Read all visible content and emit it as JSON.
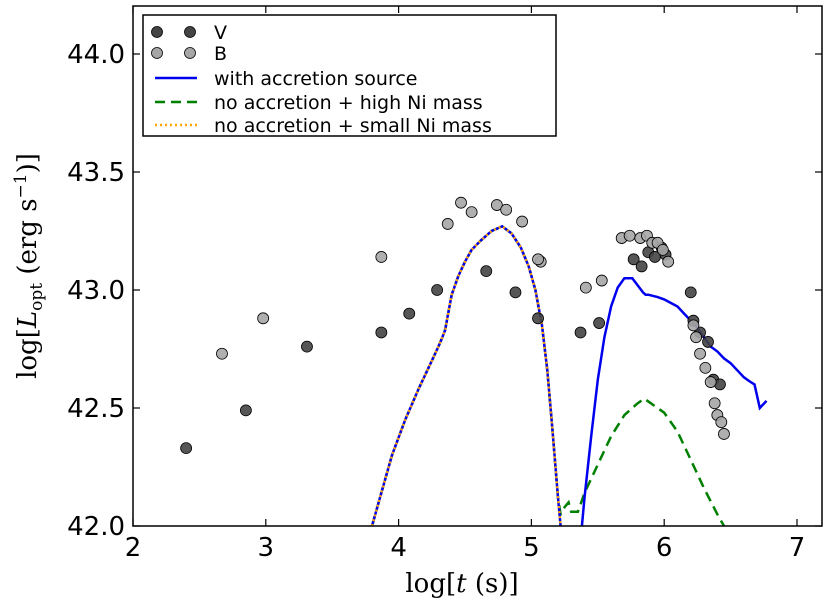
{
  "chart_data": {
    "type": "scatter",
    "xlabel": "log[t (s)]",
    "ylabel": "log[L_opt (erg s^-1)]",
    "xlim": [
      2,
      7.2
    ],
    "ylim": [
      42.0,
      44.2
    ],
    "xticks": [
      "2",
      "3",
      "4",
      "5",
      "6",
      "7"
    ],
    "yticks": [
      "42.0",
      "42.5",
      "43.0",
      "43.5",
      "44.0"
    ],
    "legend_position": "top-left",
    "series": [
      {
        "name": "V",
        "kind": "scatter",
        "color": "#444444",
        "points": [
          [
            2.4,
            42.33
          ],
          [
            2.85,
            42.49
          ],
          [
            3.31,
            42.76
          ],
          [
            3.87,
            42.82
          ],
          [
            4.08,
            42.9
          ],
          [
            4.29,
            43.0
          ],
          [
            4.66,
            43.08
          ],
          [
            4.88,
            42.99
          ],
          [
            5.05,
            42.88
          ],
          [
            5.37,
            42.82
          ],
          [
            5.51,
            42.86
          ],
          [
            5.77,
            43.13
          ],
          [
            5.83,
            43.1
          ],
          [
            5.88,
            43.16
          ],
          [
            5.93,
            43.14
          ],
          [
            5.98,
            43.18
          ],
          [
            6.01,
            43.15
          ],
          [
            6.2,
            42.99
          ],
          [
            6.22,
            42.87
          ],
          [
            6.27,
            42.82
          ],
          [
            6.33,
            42.78
          ],
          [
            6.37,
            42.62
          ],
          [
            6.42,
            42.6
          ]
        ]
      },
      {
        "name": "B",
        "kind": "scatter",
        "color": "#a6a6a6",
        "points": [
          [
            2.67,
            42.73
          ],
          [
            2.98,
            42.88
          ],
          [
            3.87,
            43.14
          ],
          [
            4.37,
            43.28
          ],
          [
            4.47,
            43.37
          ],
          [
            4.55,
            43.33
          ],
          [
            4.74,
            43.36
          ],
          [
            4.81,
            43.34
          ],
          [
            4.93,
            43.29
          ],
          [
            5.07,
            43.12
          ],
          [
            5.05,
            43.13
          ],
          [
            5.41,
            43.01
          ],
          [
            5.53,
            43.04
          ],
          [
            5.68,
            43.22
          ],
          [
            5.74,
            43.23
          ],
          [
            5.82,
            43.22
          ],
          [
            5.87,
            43.23
          ],
          [
            5.91,
            43.2
          ],
          [
            5.95,
            43.2
          ],
          [
            5.99,
            43.17
          ],
          [
            6.03,
            43.12
          ],
          [
            6.22,
            42.85
          ],
          [
            6.24,
            42.8
          ],
          [
            6.27,
            42.73
          ],
          [
            6.31,
            42.67
          ],
          [
            6.35,
            42.61
          ],
          [
            6.38,
            42.52
          ],
          [
            6.4,
            42.47
          ],
          [
            6.43,
            42.44
          ],
          [
            6.45,
            42.39
          ]
        ]
      },
      {
        "name": "with accretion source",
        "kind": "line",
        "color": "#0000ee",
        "dash": "",
        "x": [
          3.8,
          3.87,
          3.95,
          4.05,
          4.15,
          4.25,
          4.3,
          4.33,
          4.35,
          4.37,
          4.4,
          4.45,
          4.5,
          4.55,
          4.62,
          4.7,
          4.78,
          4.85,
          4.92,
          4.98,
          5.03,
          5.08,
          5.12,
          5.16,
          5.2,
          5.22,
          5.38,
          5.4,
          5.45,
          5.5,
          5.55,
          5.6,
          5.65,
          5.7,
          5.76,
          5.8,
          5.84,
          5.86,
          5.88,
          5.95,
          6.0,
          6.1,
          6.15,
          6.2,
          6.25,
          6.3,
          6.35,
          6.4,
          6.45,
          6.5,
          6.55,
          6.6,
          6.65,
          6.68,
          6.72,
          6.77
        ],
        "y": [
          42.0,
          42.14,
          42.3,
          42.45,
          42.58,
          42.7,
          42.76,
          42.8,
          42.83,
          42.89,
          42.98,
          43.06,
          43.12,
          43.17,
          43.21,
          43.25,
          43.27,
          43.24,
          43.18,
          43.1,
          43.0,
          42.85,
          42.66,
          42.4,
          42.12,
          42.0,
          42.0,
          42.12,
          42.38,
          42.62,
          42.8,
          42.93,
          43.01,
          43.05,
          43.05,
          43.02,
          42.99,
          42.98,
          42.98,
          42.97,
          42.96,
          42.93,
          42.9,
          42.87,
          42.84,
          42.8,
          42.76,
          42.74,
          42.71,
          42.69,
          42.66,
          42.63,
          42.61,
          42.6,
          42.5,
          42.53
        ]
      },
      {
        "name": "no accretion + high Ni mass",
        "kind": "line",
        "color": "#008000",
        "dash": "10,6",
        "x": [
          3.8,
          3.87,
          3.95,
          4.05,
          4.15,
          4.25,
          4.3,
          4.33,
          4.35,
          4.37,
          4.4,
          4.45,
          4.5,
          4.55,
          4.62,
          4.7,
          4.78,
          4.85,
          4.92,
          4.98,
          5.03,
          5.08,
          5.12,
          5.16,
          5.2,
          5.22,
          5.23,
          5.25,
          5.28,
          5.3,
          5.35,
          5.4,
          5.5,
          5.6,
          5.7,
          5.8,
          5.85,
          5.9,
          6.0,
          6.1,
          6.2,
          6.3,
          6.4,
          6.45
        ],
        "y": [
          42.0,
          42.14,
          42.3,
          42.45,
          42.58,
          42.7,
          42.76,
          42.8,
          42.83,
          42.89,
          42.98,
          43.06,
          43.12,
          43.17,
          43.21,
          43.25,
          43.27,
          43.24,
          43.18,
          43.1,
          43.0,
          42.85,
          42.66,
          42.4,
          42.12,
          42.05,
          42.06,
          42.08,
          42.1,
          42.06,
          42.06,
          42.14,
          42.26,
          42.38,
          42.47,
          42.52,
          42.54,
          42.52,
          42.48,
          42.4,
          42.28,
          42.16,
          42.05,
          42.0
        ]
      },
      {
        "name": "no accretion + small Ni mass",
        "kind": "line",
        "color": "#ffa500",
        "dash": "2,3",
        "x": [
          3.8,
          3.87,
          3.95,
          4.05,
          4.15,
          4.25,
          4.3,
          4.33,
          4.35,
          4.37,
          4.4,
          4.45,
          4.5,
          4.55,
          4.62,
          4.7,
          4.78,
          4.85,
          4.92,
          4.98,
          5.03,
          5.08,
          5.12,
          5.16,
          5.2,
          5.22
        ],
        "y": [
          42.0,
          42.14,
          42.3,
          42.45,
          42.58,
          42.7,
          42.76,
          42.8,
          42.83,
          42.89,
          42.98,
          43.06,
          43.12,
          43.17,
          43.21,
          43.25,
          43.27,
          43.24,
          43.18,
          43.1,
          43.0,
          42.85,
          42.66,
          42.4,
          42.12,
          42.0
        ]
      }
    ]
  }
}
